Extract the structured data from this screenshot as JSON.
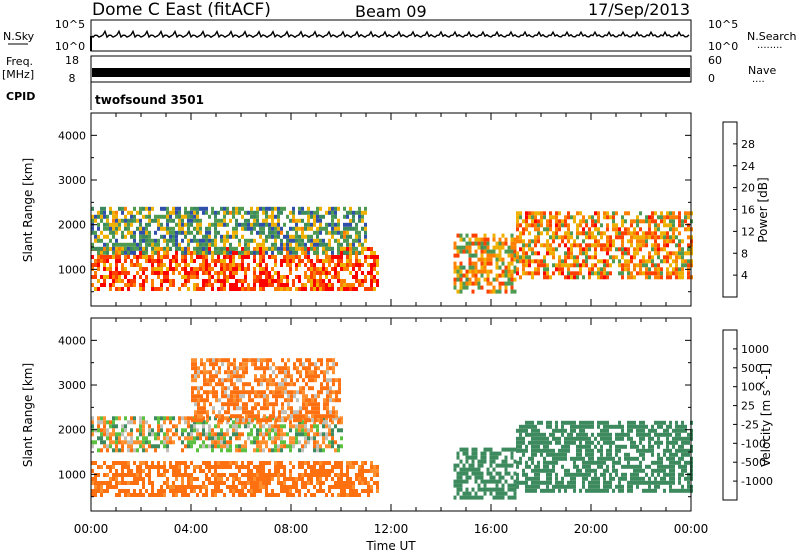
{
  "header": {
    "station": "Dome C East (fitACF)",
    "beam": "Beam 09",
    "date": "17/Sep/2013"
  },
  "nsky_panel": {
    "left_label": "N.Sky",
    "right_label": "N.Search",
    "right_dots": "........",
    "left_ticks": [
      "10^5",
      "10^0"
    ],
    "right_ticks": [
      "10^5",
      "10^0"
    ]
  },
  "freq_panel": {
    "left_label": "Freq.",
    "left_unit": "[MHz]",
    "left_ticks": [
      "18",
      "8"
    ],
    "right_label": "Nave",
    "right_dots": "....",
    "right_ticks": [
      "60",
      "0"
    ]
  },
  "cpid_panel": {
    "label": "CPID",
    "value": "twofsound 3501"
  },
  "colors": {
    "power_scale": [
      "#0000ff",
      "#2f4fa8",
      "#3c8a5e",
      "#4e9a52",
      "#f0b000",
      "#ff8000",
      "#ff4000",
      "#ff0000"
    ],
    "velocity_scale": [
      "#2040c0",
      "#306aa8",
      "#3c8a5e",
      "#5cc040",
      "#c8c8c0",
      "#ff9030",
      "#ff7010",
      "#ff4010",
      "#ff0000"
    ],
    "echo_gray": "#c0c0b8"
  },
  "chart_data": [
    {
      "type": "heatmap",
      "panel": "power",
      "title": "",
      "ylabel": "Slant Range [km]",
      "xlabel": "",
      "x_range": [
        "00:00",
        "24:00"
      ],
      "ylim": [
        180,
        4500
      ],
      "y_ticks": [
        "1000",
        "2000",
        "3000",
        "4000"
      ],
      "colorbar": {
        "label": "Power [dB]",
        "ticks": [
          "4",
          "8",
          "12",
          "16",
          "20",
          "24",
          "28"
        ],
        "range": [
          0,
          30
        ]
      },
      "echo_bands": [
        {
          "start": "00:00",
          "end": "11:30",
          "range_low": 550,
          "range_high": 1500,
          "value": 24
        },
        {
          "start": "00:00",
          "end": "11:00",
          "range_low": 1400,
          "range_high": 2400,
          "value": 12
        },
        {
          "start": "14:30",
          "end": "17:00",
          "range_low": 500,
          "range_high": 1800,
          "value": 18
        },
        {
          "start": "17:00",
          "end": "24:00",
          "range_low": 800,
          "range_high": 2300,
          "value": 20
        }
      ]
    },
    {
      "type": "heatmap",
      "panel": "velocity",
      "title": "",
      "ylabel": "Slant Range [km]",
      "xlabel": "Time UT",
      "x_ticks": [
        "00:00",
        "04:00",
        "08:00",
        "12:00",
        "16:00",
        "20:00",
        "00:00"
      ],
      "ylim": [
        180,
        4500
      ],
      "y_ticks": [
        "1000",
        "2000",
        "3000",
        "4000"
      ],
      "colorbar": {
        "label": "Velocity [m s^-1]",
        "ticks": [
          "1000",
          "500",
          "100",
          "25",
          "-25",
          "-100",
          "-500",
          "-1000"
        ]
      },
      "echo_bands": [
        {
          "start": "00:00",
          "end": "11:30",
          "range_low": 550,
          "range_high": 1300,
          "value": -200
        },
        {
          "start": "00:00",
          "end": "10:00",
          "range_low": 1500,
          "range_high": 2300,
          "value": 0
        },
        {
          "start": "04:00",
          "end": "10:00",
          "range_low": 2200,
          "range_high": 3600,
          "value": -150
        },
        {
          "start": "14:30",
          "end": "17:00",
          "range_low": 500,
          "range_high": 1600,
          "value": 300
        },
        {
          "start": "17:00",
          "end": "24:00",
          "range_low": 600,
          "range_high": 2200,
          "value": 300
        }
      ]
    }
  ]
}
